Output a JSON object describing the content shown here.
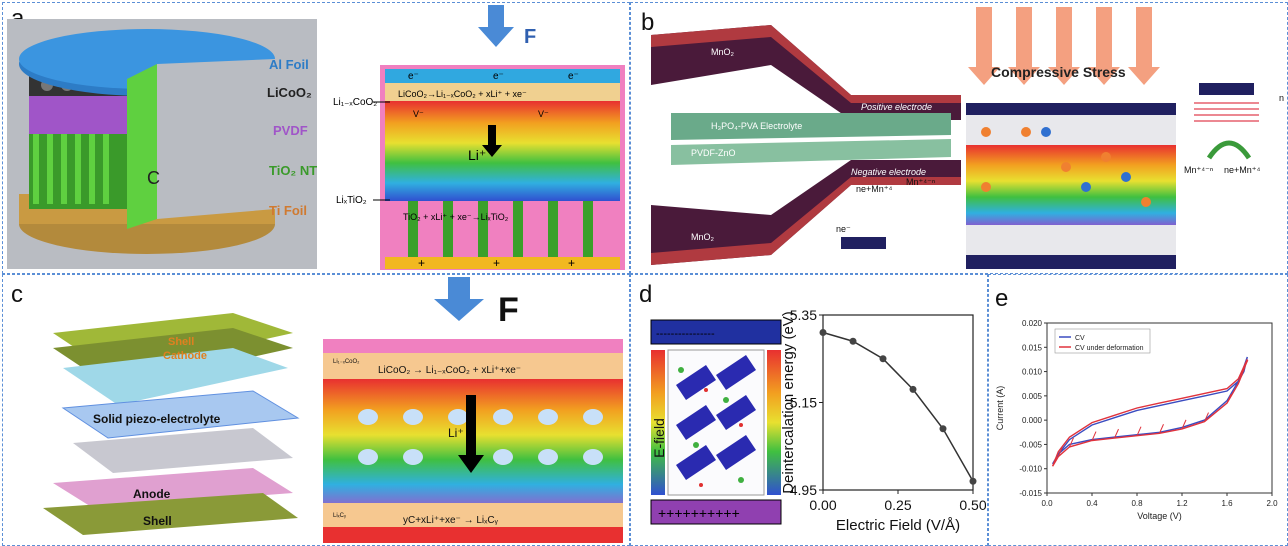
{
  "panels": {
    "a": {
      "label": "a",
      "layers": [
        "Al Foil",
        "LiCoO₂",
        "PVDF",
        "TiO₂ NT",
        "Ti Foil"
      ],
      "c_label": "C",
      "force": "F",
      "electron": "e⁻",
      "top_layer": "Li₁₋ₓCoO₂",
      "bottom_layer": "LiₓTiO₂",
      "top_reaction": "LiCoO₂→Li₁₋ₓCoO₂ + xLi⁺ + xe⁻",
      "bottom_reaction": "TiO₂ + xLi⁺ + xe⁻→LiₓTiO₂",
      "ion": "Li⁺",
      "vacancy": "V⁻",
      "plus": "+"
    },
    "b": {
      "label": "b",
      "mno2_top": "MnO₂",
      "mno2_bottom": "MnO₂",
      "electrolyte": "H₃PO₄-PVA Electrolyte",
      "separator": "PVDF-ZnO",
      "positive": "Positive electrode",
      "negative": "Negative electrode",
      "stress": "Compressive Stress",
      "left_reaction_a": "ne+Mn⁺⁴",
      "left_reaction_b": "Mn⁺⁴⁻ⁿ",
      "right_reaction_a": "Mn⁺⁴⁻ⁿ",
      "right_reaction_b": "ne+Mn⁺⁴",
      "ne": "ne⁻",
      "n": "n"
    },
    "c": {
      "label": "c",
      "shell_top": "Shell",
      "cathode": "Cathode",
      "electrolyte": "Solid piezo-electrolyte",
      "anode": "Anode",
      "shell_bottom": "Shell",
      "force": "F",
      "top_small": "Li₁₋ₓCoO₂",
      "top_reaction": "LiCoO₂ → Li₁₋ₓCoO₂ + xLi⁺+xe⁻",
      "bottom_small": "LiₓCᵧ",
      "bottom_reaction": "yC+xLi⁺+xe⁻ → LiₓCᵧ",
      "ion": "Li⁺"
    },
    "d": {
      "label": "d",
      "efield": "E-field",
      "minus_row": "----------------",
      "plus_row": "++++++++++"
    },
    "e": {
      "label": "e"
    }
  },
  "chart_data": [
    {
      "type": "line",
      "panel": "d",
      "title": "",
      "xlabel": "Electric Field (V/Å)",
      "ylabel": "Deintercalation energy (eV)",
      "x": [
        0.0,
        0.1,
        0.2,
        0.3,
        0.4,
        0.5
      ],
      "series": [
        {
          "name": "",
          "values": [
            5.31,
            5.29,
            5.25,
            5.18,
            5.09,
            4.97
          ]
        }
      ],
      "xlim": [
        0.0,
        0.5
      ],
      "ylim": [
        4.95,
        5.35
      ],
      "xticks": [
        "0.00",
        "0.25",
        "0.50"
      ],
      "yticks": [
        "4.95",
        "5.15",
        "5.35"
      ],
      "color": "#333333"
    },
    {
      "type": "line",
      "panel": "e",
      "title": "",
      "xlabel": "Voltage (V)",
      "ylabel": "Current (A)",
      "xlim": [
        0.0,
        2.0
      ],
      "ylim": [
        -0.015,
        0.02
      ],
      "xticks": [
        "0.0",
        "0.4",
        "0.8",
        "1.2",
        "1.6",
        "2.0"
      ],
      "yticks": [
        "-0.015",
        "-0.010",
        "-0.005",
        "0.000",
        "0.005",
        "0.010",
        "0.015",
        "0.020"
      ],
      "legend": "top-left",
      "series": [
        {
          "name": "CV",
          "color": "#3b4cc0",
          "x": [
            0.05,
            0.1,
            0.2,
            0.4,
            0.6,
            0.8,
            1.0,
            1.2,
            1.4,
            1.6,
            1.7,
            1.75,
            1.78,
            1.75,
            1.7,
            1.6,
            1.4,
            1.2,
            1.0,
            0.8,
            0.6,
            0.4,
            0.2,
            0.1,
            0.05
          ],
          "y": [
            -0.009,
            -0.007,
            -0.005,
            -0.004,
            -0.0035,
            -0.003,
            -0.0025,
            -0.0015,
            0.0,
            0.004,
            0.008,
            0.011,
            0.013,
            0.01,
            0.008,
            0.006,
            0.005,
            0.004,
            0.003,
            0.002,
            0.0005,
            -0.001,
            -0.004,
            -0.007,
            -0.009
          ]
        },
        {
          "name": "CV under deformation",
          "color": "#e0323c",
          "x": [
            0.05,
            0.1,
            0.2,
            0.4,
            0.6,
            0.8,
            1.0,
            1.2,
            1.4,
            1.6,
            1.7,
            1.75,
            1.78,
            1.75,
            1.7,
            1.6,
            1.4,
            1.2,
            1.0,
            0.8,
            0.6,
            0.4,
            0.2,
            0.1,
            0.05
          ],
          "y": [
            -0.0095,
            -0.0075,
            -0.0055,
            -0.0042,
            -0.0037,
            -0.0032,
            -0.0027,
            -0.0018,
            -0.0003,
            0.0035,
            0.0075,
            0.0105,
            0.0125,
            0.011,
            0.0085,
            0.0065,
            0.0055,
            0.0045,
            0.0035,
            0.0025,
            0.001,
            -0.0005,
            -0.0035,
            -0.0065,
            -0.0095
          ]
        }
      ]
    }
  ]
}
